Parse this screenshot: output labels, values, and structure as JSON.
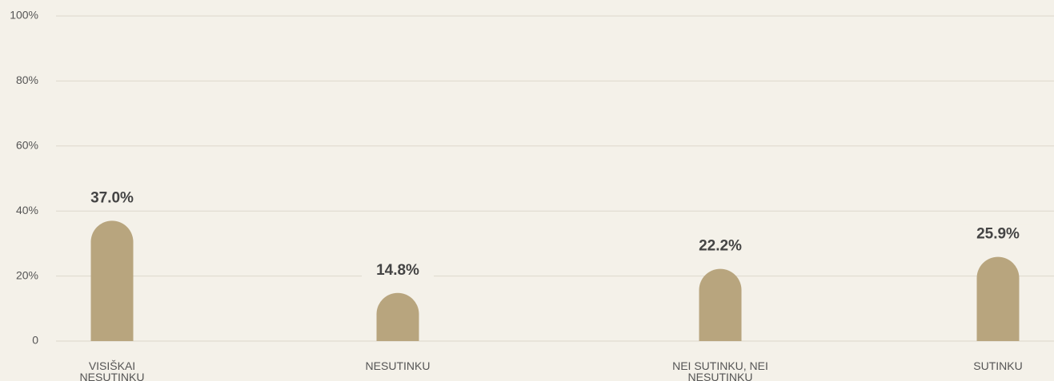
{
  "chart_data": {
    "type": "bar",
    "categories": [
      "VISIŠKAI NESUTINKU",
      "NESUTINKU",
      "NEI SUTINKU, NEI NESUTINKU",
      "SUTINKU"
    ],
    "values": [
      37.0,
      14.8,
      22.2,
      25.9
    ],
    "value_labels": [
      "37.0%",
      "14.8%",
      "22.2%",
      "25.9%"
    ],
    "color": "#b8a57e",
    "ylim": [
      0,
      100
    ],
    "yticks": [
      0,
      {
        "value": 20,
        "label": "20%"
      },
      {
        "value": 40,
        "label": "40%"
      },
      {
        "value": 60,
        "label": "60%"
      },
      {
        "value": 80,
        "label": "80%"
      },
      {
        "value": 100,
        "label": "100%"
      }
    ],
    "grid": true
  }
}
